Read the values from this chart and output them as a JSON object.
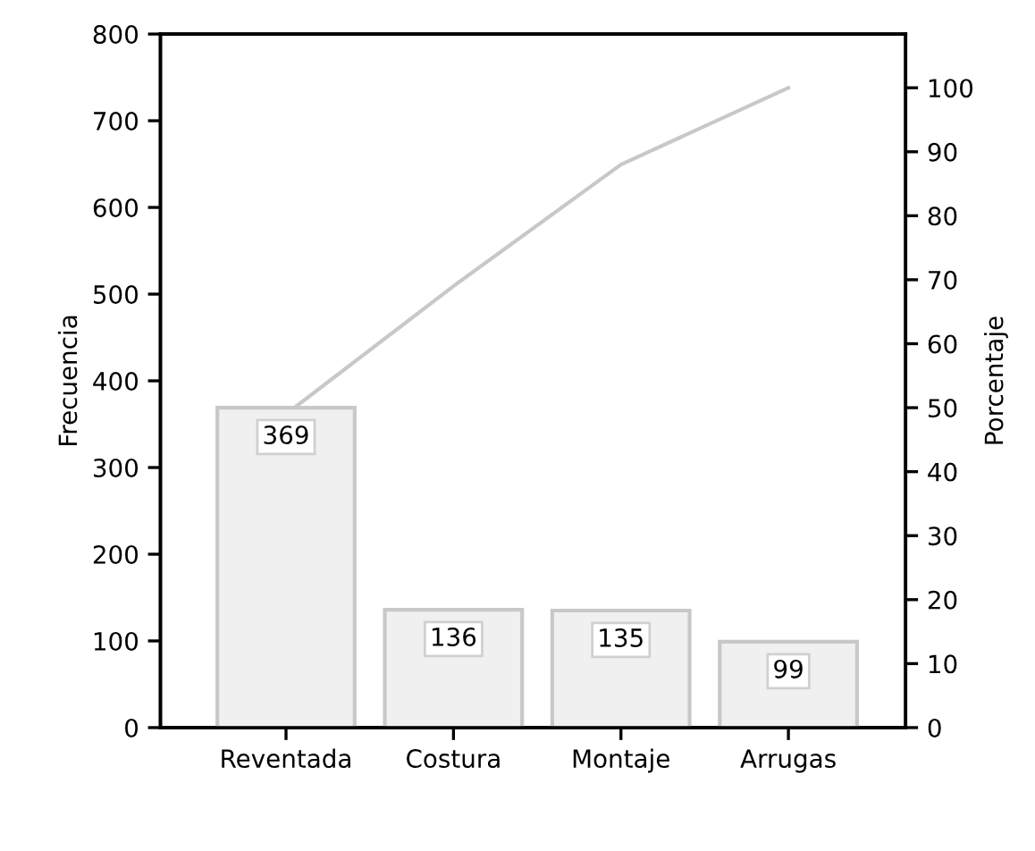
{
  "chart_data": {
    "type": "bar",
    "ylabel": "Frecuencia",
    "y2label": "Porcentaje",
    "categories": [
      "Reventada",
      "Costura",
      "Montaje",
      "Arrugas"
    ],
    "series": [
      {
        "color": "#f0f0f0",
        "values": [
          369,
          136,
          135,
          99
        ],
        "value_labels": [
          "369",
          "136",
          "135",
          "99"
        ]
      },
      {
        "type": "line",
        "axis": "y2",
        "color": "#c8c8c8",
        "values": [
          49,
          69,
          88,
          100
        ]
      }
    ],
    "ylim": [
      0,
      800
    ],
    "yticks": [
      0,
      100,
      200,
      300,
      400,
      500,
      600,
      700,
      800
    ],
    "y2lim": [
      0,
      108.4
    ],
    "y2ticks": [
      0,
      10,
      20,
      30,
      40,
      50,
      60,
      70,
      80,
      90,
      100
    ],
    "grid": false,
    "marker": "none",
    "line_style": "solid"
  }
}
